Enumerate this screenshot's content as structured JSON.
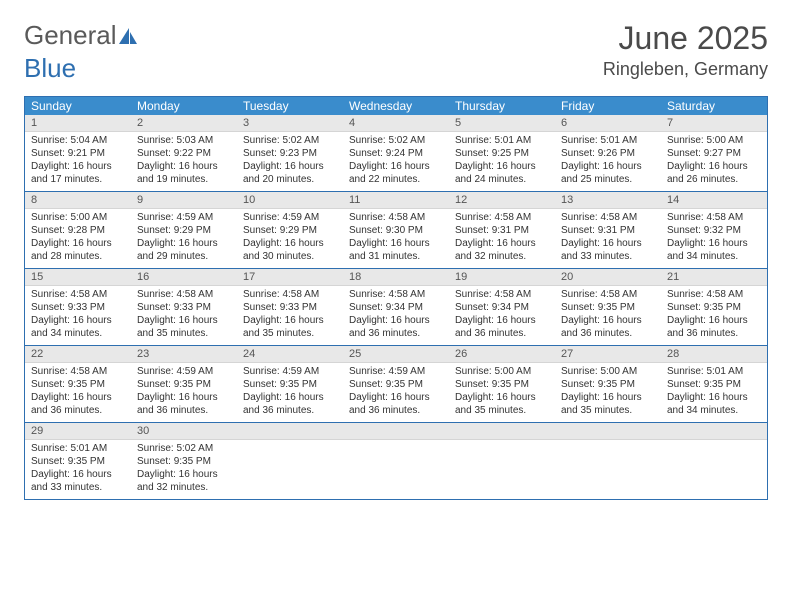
{
  "logo": {
    "word1": "General",
    "word2": "Blue"
  },
  "title": "June 2025",
  "location": "Ringleben, Germany",
  "colors": {
    "header_bg": "#3a8ccc",
    "border": "#2e6fb0",
    "daynum_bg": "#e8e8e8",
    "text": "#333333",
    "logo_gray": "#5a5a5a",
    "logo_blue": "#2e6fb0"
  },
  "daysOfWeek": [
    "Sunday",
    "Monday",
    "Tuesday",
    "Wednesday",
    "Thursday",
    "Friday",
    "Saturday"
  ],
  "weeks": [
    [
      {
        "n": "1",
        "sr": "5:04 AM",
        "ss": "9:21 PM",
        "dl": "16 hours and 17 minutes."
      },
      {
        "n": "2",
        "sr": "5:03 AM",
        "ss": "9:22 PM",
        "dl": "16 hours and 19 minutes."
      },
      {
        "n": "3",
        "sr": "5:02 AM",
        "ss": "9:23 PM",
        "dl": "16 hours and 20 minutes."
      },
      {
        "n": "4",
        "sr": "5:02 AM",
        "ss": "9:24 PM",
        "dl": "16 hours and 22 minutes."
      },
      {
        "n": "5",
        "sr": "5:01 AM",
        "ss": "9:25 PM",
        "dl": "16 hours and 24 minutes."
      },
      {
        "n": "6",
        "sr": "5:01 AM",
        "ss": "9:26 PM",
        "dl": "16 hours and 25 minutes."
      },
      {
        "n": "7",
        "sr": "5:00 AM",
        "ss": "9:27 PM",
        "dl": "16 hours and 26 minutes."
      }
    ],
    [
      {
        "n": "8",
        "sr": "5:00 AM",
        "ss": "9:28 PM",
        "dl": "16 hours and 28 minutes."
      },
      {
        "n": "9",
        "sr": "4:59 AM",
        "ss": "9:29 PM",
        "dl": "16 hours and 29 minutes."
      },
      {
        "n": "10",
        "sr": "4:59 AM",
        "ss": "9:29 PM",
        "dl": "16 hours and 30 minutes."
      },
      {
        "n": "11",
        "sr": "4:58 AM",
        "ss": "9:30 PM",
        "dl": "16 hours and 31 minutes."
      },
      {
        "n": "12",
        "sr": "4:58 AM",
        "ss": "9:31 PM",
        "dl": "16 hours and 32 minutes."
      },
      {
        "n": "13",
        "sr": "4:58 AM",
        "ss": "9:31 PM",
        "dl": "16 hours and 33 minutes."
      },
      {
        "n": "14",
        "sr": "4:58 AM",
        "ss": "9:32 PM",
        "dl": "16 hours and 34 minutes."
      }
    ],
    [
      {
        "n": "15",
        "sr": "4:58 AM",
        "ss": "9:33 PM",
        "dl": "16 hours and 34 minutes."
      },
      {
        "n": "16",
        "sr": "4:58 AM",
        "ss": "9:33 PM",
        "dl": "16 hours and 35 minutes."
      },
      {
        "n": "17",
        "sr": "4:58 AM",
        "ss": "9:33 PM",
        "dl": "16 hours and 35 minutes."
      },
      {
        "n": "18",
        "sr": "4:58 AM",
        "ss": "9:34 PM",
        "dl": "16 hours and 36 minutes."
      },
      {
        "n": "19",
        "sr": "4:58 AM",
        "ss": "9:34 PM",
        "dl": "16 hours and 36 minutes."
      },
      {
        "n": "20",
        "sr": "4:58 AM",
        "ss": "9:35 PM",
        "dl": "16 hours and 36 minutes."
      },
      {
        "n": "21",
        "sr": "4:58 AM",
        "ss": "9:35 PM",
        "dl": "16 hours and 36 minutes."
      }
    ],
    [
      {
        "n": "22",
        "sr": "4:58 AM",
        "ss": "9:35 PM",
        "dl": "16 hours and 36 minutes."
      },
      {
        "n": "23",
        "sr": "4:59 AM",
        "ss": "9:35 PM",
        "dl": "16 hours and 36 minutes."
      },
      {
        "n": "24",
        "sr": "4:59 AM",
        "ss": "9:35 PM",
        "dl": "16 hours and 36 minutes."
      },
      {
        "n": "25",
        "sr": "4:59 AM",
        "ss": "9:35 PM",
        "dl": "16 hours and 36 minutes."
      },
      {
        "n": "26",
        "sr": "5:00 AM",
        "ss": "9:35 PM",
        "dl": "16 hours and 35 minutes."
      },
      {
        "n": "27",
        "sr": "5:00 AM",
        "ss": "9:35 PM",
        "dl": "16 hours and 35 minutes."
      },
      {
        "n": "28",
        "sr": "5:01 AM",
        "ss": "9:35 PM",
        "dl": "16 hours and 34 minutes."
      }
    ],
    [
      {
        "n": "29",
        "sr": "5:01 AM",
        "ss": "9:35 PM",
        "dl": "16 hours and 33 minutes."
      },
      {
        "n": "30",
        "sr": "5:02 AM",
        "ss": "9:35 PM",
        "dl": "16 hours and 32 minutes."
      },
      null,
      null,
      null,
      null,
      null
    ]
  ],
  "labels": {
    "sunrise": "Sunrise: ",
    "sunset": "Sunset: ",
    "daylight": "Daylight: "
  }
}
